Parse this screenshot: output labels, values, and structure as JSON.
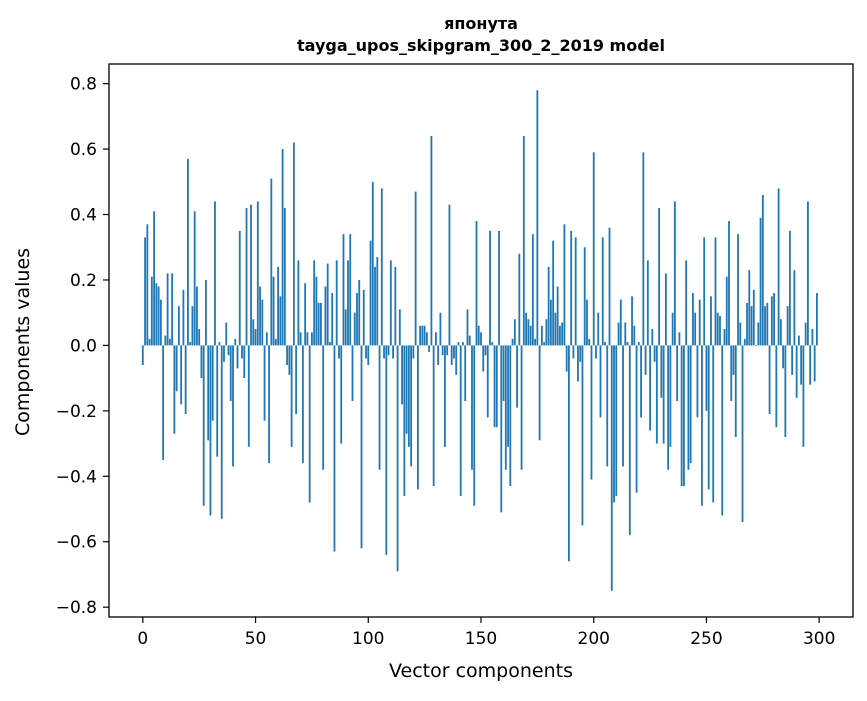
{
  "chart_data": {
    "type": "bar",
    "title_line1": "японута",
    "title_line2": "tayga_upos_skipgram_300_2_2019 model",
    "xlabel": "Vector components",
    "ylabel": "Components values",
    "xlim": [
      -15,
      315
    ],
    "ylim": [
      -0.83,
      0.86
    ],
    "xticks": [
      0,
      50,
      100,
      150,
      200,
      250,
      300
    ],
    "xtick_labels": [
      "0",
      "50",
      "100",
      "150",
      "200",
      "250",
      "300"
    ],
    "yticks": [
      -0.8,
      -0.6,
      -0.4,
      -0.2,
      0.0,
      0.2,
      0.4,
      0.6,
      0.8
    ],
    "ytick_labels": [
      "−0.8",
      "−0.6",
      "−0.4",
      "−0.2",
      "0.0",
      "0.2",
      "0.4",
      "0.6",
      "0.8"
    ],
    "grid": false,
    "bar_color": "#1f77b4",
    "values": [
      -0.06,
      0.33,
      0.37,
      0.02,
      0.21,
      0.41,
      0.19,
      0.18,
      0.14,
      -0.35,
      0.03,
      0.22,
      0.02,
      0.22,
      -0.27,
      -0.14,
      0.12,
      -0.18,
      0.17,
      -0.21,
      0.57,
      0.01,
      0.12,
      0.41,
      0.18,
      0.05,
      -0.1,
      -0.49,
      0.2,
      -0.29,
      -0.52,
      -0.23,
      0.44,
      -0.34,
      0.01,
      -0.53,
      -0.05,
      0.07,
      -0.03,
      -0.17,
      -0.37,
      0.02,
      -0.07,
      0.35,
      -0.04,
      -0.1,
      0.42,
      -0.31,
      0.43,
      0.08,
      0.05,
      0.44,
      0.18,
      0.14,
      -0.23,
      0.04,
      -0.36,
      0.51,
      0.21,
      0.02,
      0.24,
      0.15,
      0.6,
      0.42,
      -0.06,
      -0.09,
      -0.31,
      0.62,
      -0.21,
      0.26,
      0.04,
      -0.36,
      0.19,
      0.04,
      -0.48,
      0.04,
      0.26,
      0.21,
      0.13,
      0.13,
      -0.38,
      0.18,
      0.25,
      0.01,
      0.16,
      -0.63,
      0.26,
      -0.04,
      -0.3,
      0.34,
      0.11,
      0.26,
      0.34,
      -0.17,
      0.1,
      0.16,
      0.2,
      -0.62,
      0.17,
      -0.04,
      -0.06,
      0.32,
      0.5,
      0.24,
      0.27,
      -0.38,
      0.48,
      -0.04,
      -0.64,
      -0.03,
      0.26,
      -0.04,
      0.24,
      -0.69,
      0.11,
      -0.18,
      -0.46,
      -0.27,
      -0.31,
      -0.37,
      -0.04,
      0.47,
      -0.44,
      0.06,
      0.06,
      0.06,
      0.04,
      -0.02,
      0.64,
      -0.43,
      0.04,
      -0.06,
      0.1,
      -0.03,
      -0.31,
      -0.03,
      0.43,
      -0.06,
      -0.04,
      -0.09,
      0.01,
      -0.46,
      0.01,
      -0.17,
      0.11,
      0.03,
      -0.38,
      -0.49,
      0.38,
      0.06,
      0.04,
      -0.08,
      -0.03,
      -0.22,
      0.35,
      0.01,
      -0.25,
      -0.25,
      0.35,
      -0.51,
      -0.17,
      -0.38,
      -0.31,
      -0.43,
      0.02,
      0.08,
      -0.19,
      0.28,
      -0.38,
      0.64,
      0.1,
      0.08,
      0.06,
      0.34,
      0.02,
      0.78,
      -0.29,
      0.06,
      0.01,
      0.08,
      0.24,
      0.14,
      0.32,
      0.1,
      0.18,
      0.06,
      0.07,
      0.37,
      -0.08,
      -0.66,
      0.35,
      -0.04,
      0.33,
      -0.11,
      -0.05,
      -0.55,
      0.3,
      0.14,
      0.02,
      -0.41,
      0.59,
      -0.04,
      0.1,
      -0.22,
      0.33,
      0.01,
      -0.37,
      0.36,
      -0.75,
      -0.48,
      -0.46,
      0.07,
      0.14,
      -0.37,
      0.07,
      0.01,
      -0.58,
      0.15,
      0.06,
      -0.45,
      0.01,
      -0.22,
      0.59,
      -0.09,
      0.26,
      -0.26,
      0.05,
      -0.05,
      -0.3,
      0.42,
      -0.16,
      -0.3,
      0.22,
      -0.38,
      -0.31,
      0.1,
      0.44,
      -0.17,
      0.04,
      -0.43,
      -0.43,
      0.26,
      -0.38,
      -0.36,
      0.16,
      0.1,
      -0.22,
      0.14,
      -0.49,
      0.33,
      -0.2,
      -0.44,
      0.15,
      -0.48,
      0.33,
      0.1,
      0.09,
      -0.52,
      0.05,
      0.21,
      0.38,
      -0.17,
      -0.09,
      -0.28,
      0.34,
      0.07,
      -0.54,
      0.02,
      0.13,
      0.23,
      0.12,
      0.17,
      0.0,
      0.07,
      0.39,
      0.46,
      0.12,
      0.13,
      -0.21,
      0.15,
      0.16,
      -0.25,
      0.48,
      0.08,
      -0.07,
      -0.28,
      0.12,
      0.35,
      -0.09,
      0.23,
      -0.16,
      0.03,
      -0.12,
      -0.31,
      0.07,
      0.44,
      -0.12,
      0.05,
      -0.11,
      0.16
    ]
  }
}
